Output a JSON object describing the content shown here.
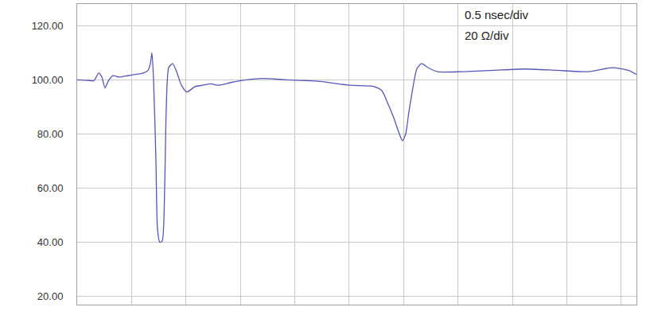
{
  "chart_data": {
    "type": "line",
    "annotations": [
      "0.5 nsec/div",
      "20 Ω/div"
    ],
    "x": [
      0.0,
      0.095,
      0.154,
      0.197,
      0.227,
      0.256,
      0.285,
      0.329,
      0.387,
      0.461,
      0.534,
      0.607,
      0.651,
      0.673,
      0.687,
      0.702,
      0.724,
      0.738,
      0.76,
      0.782,
      0.804,
      0.819,
      0.841,
      0.877,
      0.914,
      0.958,
      1.009,
      1.082,
      1.155,
      1.228,
      1.301,
      1.411,
      1.557,
      1.703,
      1.922,
      2.215,
      2.507,
      2.727,
      2.8,
      2.858,
      2.909,
      2.961,
      2.99,
      3.019,
      3.048,
      3.085,
      3.121,
      3.165,
      3.224,
      3.311,
      3.531,
      3.823,
      4.115,
      4.408,
      4.7,
      4.919,
      5.066,
      5.139
    ],
    "values": [
      100.0,
      99.8,
      99.7,
      102.5,
      101.0,
      97.0,
      99.5,
      101.5,
      101.0,
      101.5,
      102.0,
      102.5,
      103.5,
      106.0,
      110.0,
      100.0,
      70.0,
      45.0,
      40.0,
      40.5,
      60.0,
      90.0,
      104.5,
      106.0,
      103.0,
      98.0,
      95.5,
      97.5,
      98.0,
      98.5,
      98.0,
      99.0,
      100.0,
      100.5,
      100.0,
      99.5,
      98.0,
      97.5,
      96.0,
      91.0,
      86.0,
      80.0,
      77.5,
      80.0,
      88.0,
      97.0,
      104.0,
      106.0,
      104.5,
      103.0,
      103.0,
      103.5,
      104.0,
      103.5,
      103.0,
      104.5,
      103.5,
      102.0
    ],
    "color": "#5656b8",
    "xlim": [
      0,
      5.14
    ],
    "xticks": [
      0,
      0.5,
      1.0,
      1.5,
      2.0,
      2.5,
      3.0,
      3.5,
      4.0,
      4.5,
      5.0
    ],
    "ylim": [
      17,
      128
    ],
    "yticks": [
      {
        "value": 20,
        "label": "20.00"
      },
      {
        "value": 40,
        "label": "40.00"
      },
      {
        "value": 60,
        "label": "60.00"
      },
      {
        "value": 80,
        "label": "80.00"
      },
      {
        "value": 100,
        "label": "100.00"
      },
      {
        "value": 120,
        "label": "120.00"
      }
    ],
    "grid": true,
    "tick_labels": "y"
  }
}
